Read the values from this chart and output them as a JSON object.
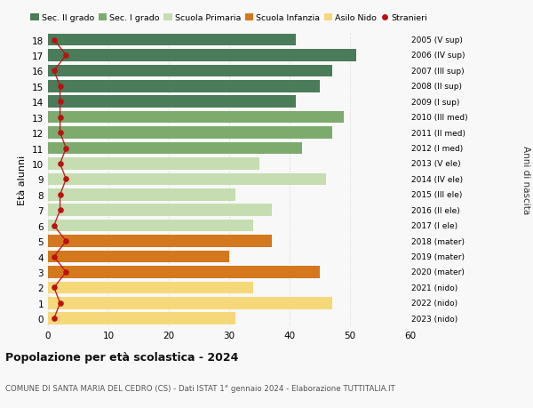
{
  "ages": [
    18,
    17,
    16,
    15,
    14,
    13,
    12,
    11,
    10,
    9,
    8,
    7,
    6,
    5,
    4,
    3,
    2,
    1,
    0
  ],
  "bar_values": [
    41,
    51,
    47,
    45,
    41,
    49,
    47,
    42,
    35,
    46,
    31,
    37,
    34,
    37,
    30,
    45,
    34,
    47,
    31
  ],
  "stranieri_values": [
    1,
    3,
    1,
    2,
    2,
    2,
    2,
    3,
    2,
    3,
    2,
    2,
    1,
    3,
    1,
    3,
    1,
    2,
    1
  ],
  "right_labels": [
    "2005 (V sup)",
    "2006 (IV sup)",
    "2007 (III sup)",
    "2008 (II sup)",
    "2009 (I sup)",
    "2010 (III med)",
    "2011 (II med)",
    "2012 (I med)",
    "2013 (V ele)",
    "2014 (IV ele)",
    "2015 (III ele)",
    "2016 (II ele)",
    "2017 (I ele)",
    "2018 (mater)",
    "2019 (mater)",
    "2020 (mater)",
    "2021 (nido)",
    "2022 (nido)",
    "2023 (nido)"
  ],
  "bar_colors": [
    "#4a7c59",
    "#4a7c59",
    "#4a7c59",
    "#4a7c59",
    "#4a7c59",
    "#7dab6e",
    "#7dab6e",
    "#7dab6e",
    "#c5ddb0",
    "#c5ddb0",
    "#c5ddb0",
    "#c5ddb0",
    "#c5ddb0",
    "#d4781e",
    "#d4781e",
    "#d4781e",
    "#f5d87a",
    "#f5d87a",
    "#f5d87a"
  ],
  "legend_labels": [
    "Sec. II grado",
    "Sec. I grado",
    "Scuola Primaria",
    "Scuola Infanzia",
    "Asilo Nido",
    "Stranieri"
  ],
  "legend_colors": [
    "#4a7c59",
    "#7dab6e",
    "#c5ddb0",
    "#d4781e",
    "#f5d87a",
    "#bb1111"
  ],
  "stranieri_color": "#bb1111",
  "title": "Popolazione per età scolastica - 2024",
  "subtitle": "COMUNE DI SANTA MARIA DEL CEDRO (CS) - Dati ISTAT 1° gennaio 2024 - Elaborazione TUTTITALIA.IT",
  "ylabel": "Età alunni",
  "right_ylabel": "Anni di nascita",
  "xlim": [
    0,
    60
  ],
  "xticks": [
    0,
    10,
    20,
    30,
    40,
    50,
    60
  ],
  "bg_color": "#f8f8f8",
  "grid_color": "#dddddd"
}
